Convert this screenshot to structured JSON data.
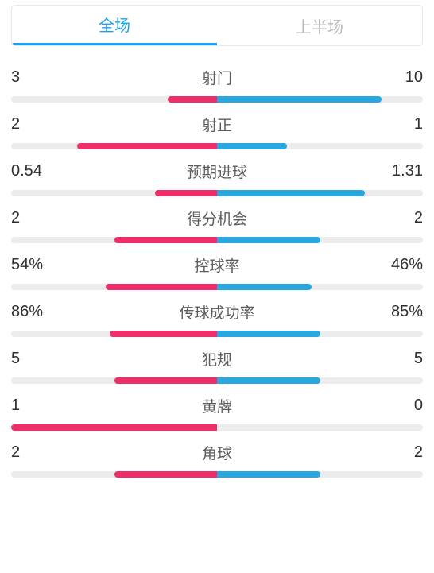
{
  "colors": {
    "left": "#ef2e69",
    "right": "#28a7e1",
    "track": "#ececec",
    "active_tab": "#1ea0f1",
    "inactive_tab": "#b9b9b9",
    "text": "#2f2f2f",
    "label": "#5b5b5b"
  },
  "tabs": [
    {
      "id": "full",
      "label": "全场",
      "active": true
    },
    {
      "id": "first_half",
      "label": "上半场",
      "active": false
    }
  ],
  "stats": [
    {
      "name": "射门",
      "left_value": "3",
      "right_value": "10",
      "left_pct": 12,
      "right_pct": 40
    },
    {
      "name": "射正",
      "left_value": "2",
      "right_value": "1",
      "left_pct": 34,
      "right_pct": 17
    },
    {
      "name": "预期进球",
      "left_value": "0.54",
      "right_value": "1.31",
      "left_pct": 15,
      "right_pct": 36
    },
    {
      "name": "得分机会",
      "left_value": "2",
      "right_value": "2",
      "left_pct": 25,
      "right_pct": 25
    },
    {
      "name": "控球率",
      "left_value": "54%",
      "right_value": "46%",
      "left_pct": 27,
      "right_pct": 23
    },
    {
      "name": "传球成功率",
      "left_value": "86%",
      "right_value": "85%",
      "left_pct": 26,
      "right_pct": 25
    },
    {
      "name": "犯规",
      "left_value": "5",
      "right_value": "5",
      "left_pct": 25,
      "right_pct": 25
    },
    {
      "name": "黄牌",
      "left_value": "1",
      "right_value": "0",
      "left_pct": 50,
      "right_pct": 0
    },
    {
      "name": "角球",
      "left_value": "2",
      "right_value": "2",
      "left_pct": 25,
      "right_pct": 25
    }
  ]
}
